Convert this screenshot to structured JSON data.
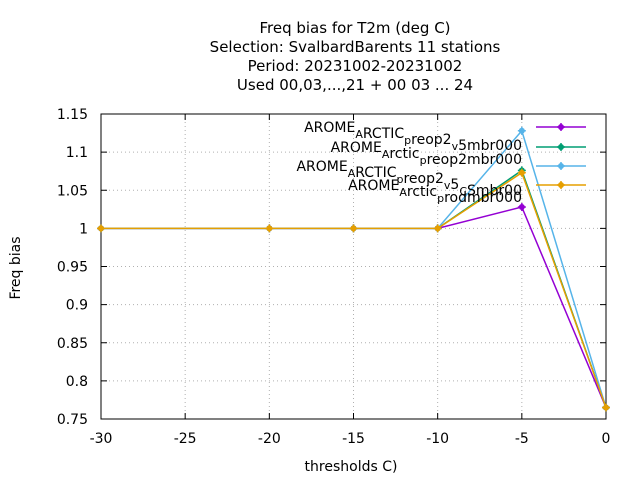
{
  "chart_data": {
    "type": "line",
    "title_lines": [
      "Freq bias  for T2m (deg C)",
      "Selection: SvalbardBarents      11 stations",
      "Period: 20231002-20231002",
      "Used  00,03,...,21  + 00 03 ... 24"
    ],
    "xlabel": "thresholds C)",
    "ylabel": "Freq bias",
    "xlim": [
      -30,
      0
    ],
    "ylim": [
      0.75,
      1.15
    ],
    "xticks": [
      -30,
      -25,
      -20,
      -15,
      -10,
      -5,
      0
    ],
    "yticks": [
      0.75,
      0.8,
      0.85,
      0.9,
      0.95,
      1,
      1.05,
      1.1,
      1.15
    ],
    "xtick_labels": [
      "-30",
      "-25",
      "-20",
      "-15",
      "-10",
      "-5",
      "0"
    ],
    "ytick_labels": [
      "0.75",
      "0.8",
      "0.85",
      "0.9",
      "0.95",
      "1",
      "1.05",
      "1.1",
      "1.15"
    ],
    "grid": true,
    "legend_position": "top-right",
    "series": [
      {
        "legend": [
          {
            "t": "AROME"
          },
          {
            "t": "A",
            "sub": true
          },
          {
            "t": "RCTIC"
          },
          {
            "t": "p",
            "sub": true
          },
          {
            "t": "reop2"
          },
          {
            "t": "v",
            "sub": true
          },
          {
            "t": "5mbr000"
          }
        ],
        "color": "#9400d3",
        "x": [
          -30,
          -20,
          -15,
          -10,
          -5,
          0
        ],
        "y": [
          1.0,
          1.0,
          1.0,
          1.0,
          1.028,
          0.765
        ]
      },
      {
        "legend": [
          {
            "t": "AROME"
          },
          {
            "t": "A",
            "sub": true
          },
          {
            "t": "rctic"
          },
          {
            "t": "p",
            "sub": true
          },
          {
            "t": "reop2mbr000"
          }
        ],
        "color": "#009e73",
        "x": [
          -30,
          -20,
          -15,
          -10,
          -5,
          0
        ],
        "y": [
          1.0,
          1.0,
          1.0,
          1.0,
          1.076,
          0.765
        ]
      },
      {
        "legend": [
          {
            "t": "AROME"
          },
          {
            "t": "A",
            "sub": true
          },
          {
            "t": "RCTIC"
          },
          {
            "t": "p",
            "sub": true
          },
          {
            "t": "reop2"
          },
          {
            "t": "v",
            "sub": true
          },
          {
            "t": "5"
          },
          {
            "t": "C",
            "sub": true
          },
          {
            "t": "Smbr00"
          }
        ],
        "color": "#56b4e9",
        "x": [
          -30,
          -20,
          -15,
          -10,
          -5,
          0
        ],
        "y": [
          1.0,
          1.0,
          1.0,
          1.0,
          1.128,
          0.765
        ]
      },
      {
        "legend": [
          {
            "t": "AROME"
          },
          {
            "t": "A",
            "sub": true
          },
          {
            "t": "rctic"
          },
          {
            "t": "p",
            "sub": true
          },
          {
            "t": "rodmbr000"
          }
        ],
        "color": "#e69f00",
        "x": [
          -30,
          -20,
          -15,
          -10,
          -5,
          0
        ],
        "y": [
          1.0,
          1.0,
          1.0,
          1.0,
          1.073,
          0.765
        ]
      }
    ]
  }
}
